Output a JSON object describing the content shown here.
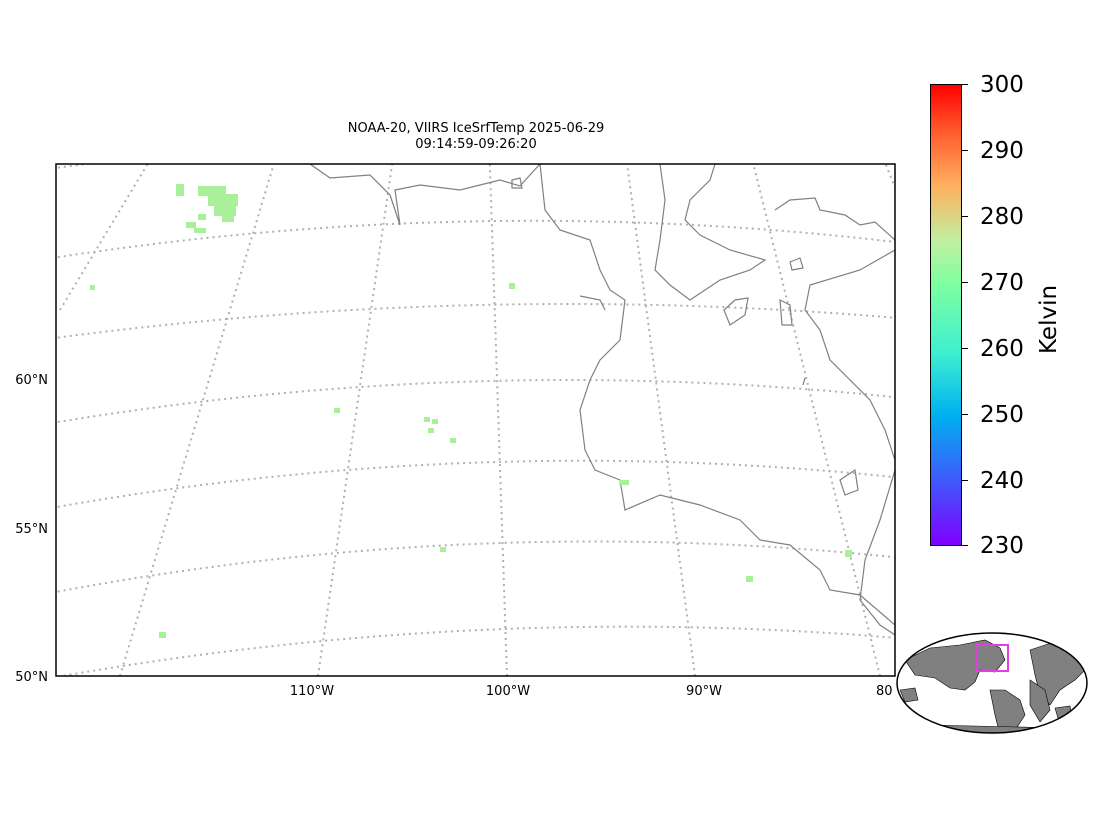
{
  "title_line1": "NOAA-20, VIIRS IceSrfTemp 2025-06-29",
  "title_line2": "09:14:59-09:26:20",
  "lat_labels": [
    "60°N",
    "55°N",
    "50°N"
  ],
  "lon_labels": [
    "110°W",
    "100°W",
    "90°W",
    "80"
  ],
  "colorbar": {
    "title": "Kelvin",
    "ticks": [
      "300",
      "290",
      "280",
      "270",
      "260",
      "250",
      "240",
      "230"
    ],
    "min": 230,
    "max": 300,
    "colormap": "rainbow"
  },
  "colors": {
    "coastline": "#808080",
    "gridline": "#b0b0b0",
    "data_point": "#aaf09a",
    "inset_land": "#808080",
    "inset_region": "#e040e0"
  }
}
